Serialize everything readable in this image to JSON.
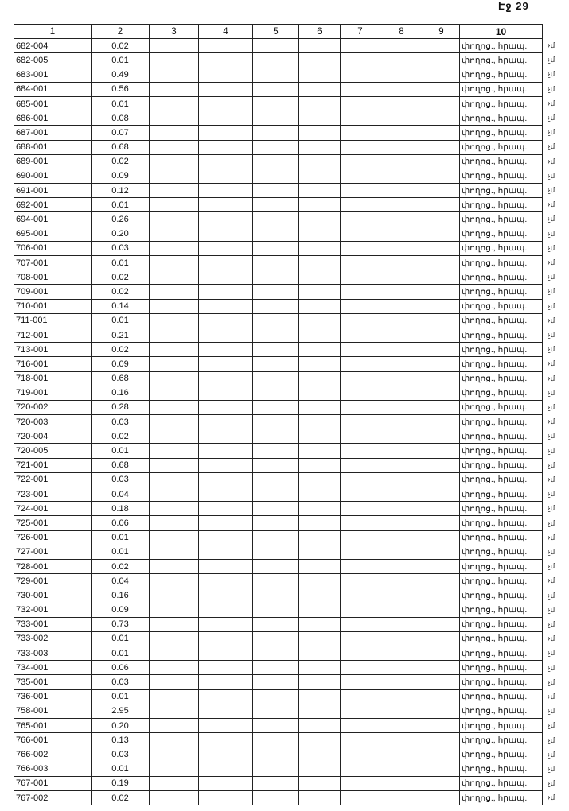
{
  "page_label": "Էջ 29",
  "columns": [
    "1",
    "2",
    "3",
    "4",
    "5",
    "6",
    "7",
    "8",
    "9",
    "10"
  ],
  "margin_mark": "չմ",
  "rows": [
    {
      "id": "682-004",
      "value": "0.02",
      "note": "փողոց., հրապ."
    },
    {
      "id": "682-005",
      "value": "0.01",
      "note": "փողոց., հրապ."
    },
    {
      "id": "683-001",
      "value": "0.49",
      "note": "փողոց., հրապ."
    },
    {
      "id": "684-001",
      "value": "0.56",
      "note": "փողոց., հրապ."
    },
    {
      "id": "685-001",
      "value": "0.01",
      "note": "փողոց., հրապ."
    },
    {
      "id": "686-001",
      "value": "0.08",
      "note": "փողոց., հրապ."
    },
    {
      "id": "687-001",
      "value": "0.07",
      "note": "փողոց., հրապ."
    },
    {
      "id": "688-001",
      "value": "0.68",
      "note": "փողոց., հրապ."
    },
    {
      "id": "689-001",
      "value": "0.02",
      "note": "փողոց., հրապ."
    },
    {
      "id": "690-001",
      "value": "0.09",
      "note": "փողոց., հրապ."
    },
    {
      "id": "691-001",
      "value": "0.12",
      "note": "փողոց., հրապ."
    },
    {
      "id": "692-001",
      "value": "0.01",
      "note": "փողոց., հրապ."
    },
    {
      "id": "694-001",
      "value": "0.26",
      "note": "փողոց., հրապ."
    },
    {
      "id": "695-001",
      "value": "0.20",
      "note": "փողոց., հրապ."
    },
    {
      "id": "706-001",
      "value": "0.03",
      "note": "փողոց., հրապ."
    },
    {
      "id": "707-001",
      "value": "0.01",
      "note": "փողոց., հրապ."
    },
    {
      "id": "708-001",
      "value": "0.02",
      "note": "փողոց., հրապ."
    },
    {
      "id": "709-001",
      "value": "0.02",
      "note": "փողոց., հրապ."
    },
    {
      "id": "710-001",
      "value": "0.14",
      "note": "փողոց., հրապ."
    },
    {
      "id": "711-001",
      "value": "0.01",
      "note": "փողոց., հրապ."
    },
    {
      "id": "712-001",
      "value": "0.21",
      "note": "փողոց., հրապ."
    },
    {
      "id": "713-001",
      "value": "0.02",
      "note": "փողոց., հրապ."
    },
    {
      "id": "716-001",
      "value": "0.09",
      "note": "փողոց., հրապ."
    },
    {
      "id": "718-001",
      "value": "0.68",
      "note": "փողոց., հրապ."
    },
    {
      "id": "719-001",
      "value": "0.16",
      "note": "փողոց., հրապ."
    },
    {
      "id": "720-002",
      "value": "0.28",
      "note": "փողոց., հրապ."
    },
    {
      "id": "720-003",
      "value": "0.03",
      "note": "փողոց., հրապ."
    },
    {
      "id": "720-004",
      "value": "0.02",
      "note": "փողոց., հրապ."
    },
    {
      "id": "720-005",
      "value": "0.01",
      "note": "փողոց., հրապ."
    },
    {
      "id": "721-001",
      "value": "0.68",
      "note": "փողոց., հրապ."
    },
    {
      "id": "722-001",
      "value": "0.03",
      "note": "փողոց., հրապ."
    },
    {
      "id": "723-001",
      "value": "0.04",
      "note": "փողոց., հրապ."
    },
    {
      "id": "724-001",
      "value": "0.18",
      "note": "փողոց., հրապ."
    },
    {
      "id": "725-001",
      "value": "0.06",
      "note": "փողոց., հրապ."
    },
    {
      "id": "726-001",
      "value": "0.01",
      "note": "փողոց., հրապ."
    },
    {
      "id": "727-001",
      "value": "0.01",
      "note": "փողոց., հրապ."
    },
    {
      "id": "728-001",
      "value": "0.02",
      "note": "փողոց., հրապ."
    },
    {
      "id": "729-001",
      "value": "0.04",
      "note": "փողոց., հրապ."
    },
    {
      "id": "730-001",
      "value": "0.16",
      "note": "փողոց., հրապ."
    },
    {
      "id": "732-001",
      "value": "0.09",
      "note": "փողոց., հրապ."
    },
    {
      "id": "733-001",
      "value": "0.73",
      "note": "փողոց., հրապ."
    },
    {
      "id": "733-002",
      "value": "0.01",
      "note": "փողոց., հրապ."
    },
    {
      "id": "733-003",
      "value": "0.01",
      "note": "փողոց., հրապ."
    },
    {
      "id": "734-001",
      "value": "0.06",
      "note": "փողոց., հրապ."
    },
    {
      "id": "735-001",
      "value": "0.03",
      "note": "փողոց., հրապ."
    },
    {
      "id": "736-001",
      "value": "0.01",
      "note": "փողոց., հրապ."
    },
    {
      "id": "758-001",
      "value": "2.95",
      "note": "փողոց., հրապ."
    },
    {
      "id": "765-001",
      "value": "0.20",
      "note": "փողոց., հրապ."
    },
    {
      "id": "766-001",
      "value": "0.13",
      "note": "փողոց., հրապ."
    },
    {
      "id": "766-002",
      "value": "0.03",
      "note": "փողոց., հրապ."
    },
    {
      "id": "766-003",
      "value": "0.01",
      "note": "փողոց., հրապ."
    },
    {
      "id": "767-001",
      "value": "0.19",
      "note": "փողոց., հրապ."
    },
    {
      "id": "767-002",
      "value": "0.02",
      "note": "փողոց., հրապ."
    }
  ]
}
